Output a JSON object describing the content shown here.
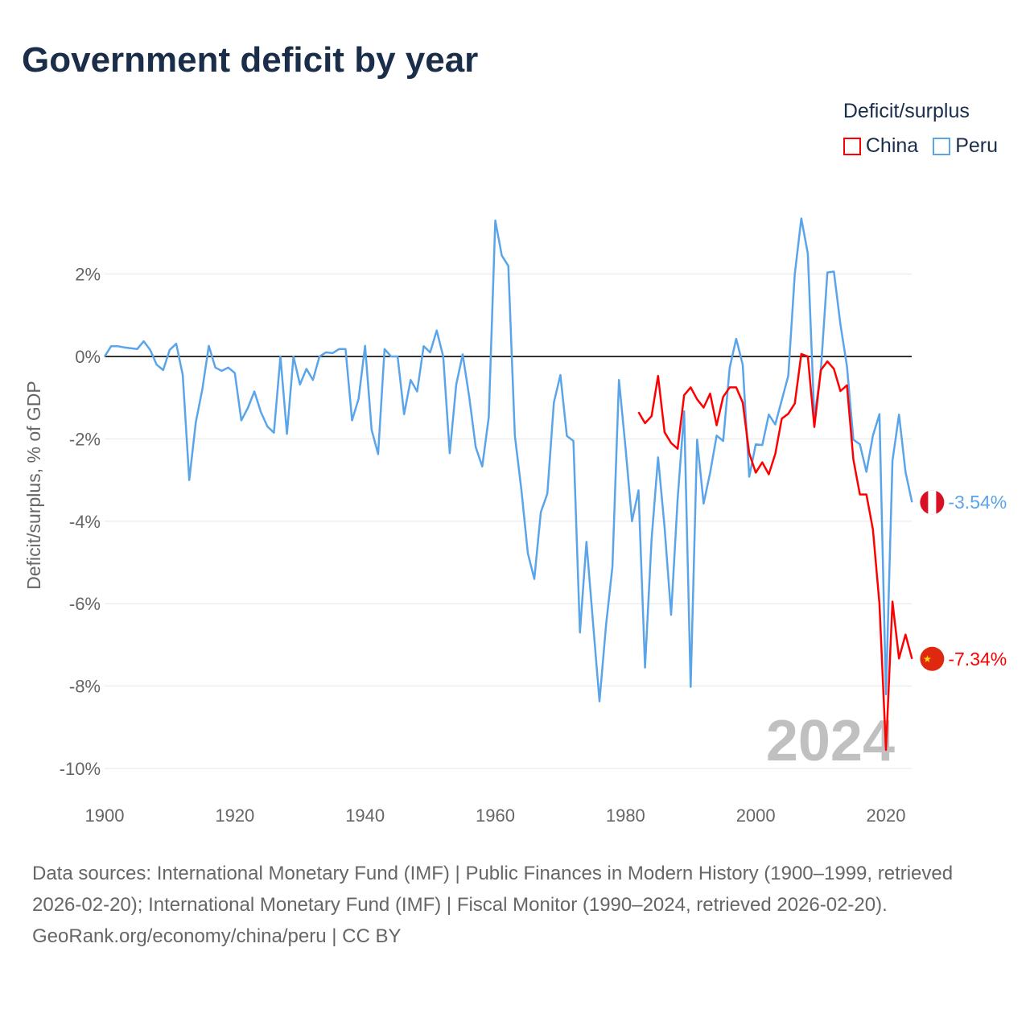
{
  "title": "Government deficit by year",
  "legend": {
    "title": "Deficit/surplus",
    "items": [
      {
        "label": "China",
        "color": "#ff0000"
      },
      {
        "label": "Peru",
        "color": "#5aa5ea"
      }
    ]
  },
  "year_watermark": "2024",
  "footer": {
    "sources": "Data sources: International Monetary Fund (IMF) | Public Finances in Modern History (1900–1999, retrieved 2026-02-20); International Monetary Fund (IMF) | Fiscal Monitor (1990–2024, retrieved 2026-02-20).",
    "credit": "GeoRank.org/economy/china/peru | CC BY"
  },
  "chart_data": {
    "type": "line",
    "title": "Government deficit by year",
    "xlabel": "",
    "ylabel": "Deficit/surplus, % of GDP",
    "xlim": [
      1900,
      2024
    ],
    "ylim": [
      -10,
      3.4
    ],
    "xticks": [
      1900,
      1920,
      1940,
      1960,
      1980,
      2000,
      2020
    ],
    "yticks": [
      {
        "v": 2,
        "label": "2%"
      },
      {
        "v": 0,
        "label": "0%"
      },
      {
        "v": -2,
        "label": "-2%"
      },
      {
        "v": -4,
        "label": "-4%"
      },
      {
        "v": -6,
        "label": "-6%"
      },
      {
        "v": -8,
        "label": "-8%"
      },
      {
        "v": -10,
        "label": "-10%"
      }
    ],
    "series": [
      {
        "name": "Peru",
        "color": "#5aa5ea",
        "start": 1900,
        "end_label": "-3.54%",
        "flag": "peru",
        "values": [
          0,
          0.25,
          0.25,
          0.22,
          0.2,
          0.18,
          0.37,
          0.16,
          -0.2,
          -0.33,
          0.16,
          0.31,
          -0.45,
          -3.0,
          -1.6,
          -0.8,
          0.26,
          -0.27,
          -0.35,
          -0.27,
          -0.4,
          -1.55,
          -1.25,
          -0.85,
          -1.35,
          -1.7,
          -1.85,
          0,
          -1.88,
          0,
          -0.68,
          -0.3,
          -0.57,
          0,
          0.1,
          0.08,
          0.18,
          0.18,
          -1.55,
          -1.03,
          0.26,
          -1.78,
          -2.37,
          0.18,
          0,
          0,
          -1.4,
          -0.57,
          -0.85,
          0.25,
          0.1,
          0.63,
          0,
          -2.35,
          -0.68,
          0.05,
          -0.98,
          -2.2,
          -2.67,
          -1.47,
          3.3,
          2.45,
          2.2,
          -1.92,
          -3.23,
          -4.78,
          -5.4,
          -3.78,
          -3.33,
          -1.12,
          -0.45,
          -1.93,
          -2.05,
          -6.7,
          -4.5,
          -6.45,
          -8.37,
          -6.53,
          -5.1,
          -0.57,
          -2.2,
          -4.0,
          -3.25,
          -7.55,
          -4.45,
          -2.45,
          -4.15,
          -6.27,
          -3.47,
          -1.33,
          -8.02,
          -2.02,
          -3.57,
          -2.82,
          -1.92,
          -2.05,
          -0.27,
          0.43,
          -0.2,
          -2.92,
          -2.13,
          -2.15,
          -1.41,
          -1.65,
          -1.06,
          -0.47,
          2.0,
          3.35,
          2.5,
          -1.5,
          -0.33,
          2.04,
          2.06,
          0.78,
          -0.23,
          -2.02,
          -2.13,
          -2.8,
          -1.92,
          -1.4,
          -8.2,
          -2.53,
          -1.41,
          -2.8,
          -3.54
        ]
      },
      {
        "name": "China",
        "color": "#ff0000",
        "start": 1982,
        "end_label": "-7.34%",
        "flag": "china",
        "values": [
          -1.35,
          -1.62,
          -1.45,
          -0.47,
          -1.84,
          -2.1,
          -2.24,
          -0.94,
          -0.75,
          -1.04,
          -1.24,
          -0.9,
          -1.67,
          -0.98,
          -0.75,
          -0.75,
          -1.12,
          -2.35,
          -2.82,
          -2.57,
          -2.86,
          -2.37,
          -1.51,
          -1.39,
          -1.14,
          0.06,
          0,
          -1.71,
          -0.33,
          -0.12,
          -0.3,
          -0.84,
          -0.7,
          -2.5,
          -3.35,
          -3.35,
          -4.2,
          -6.0,
          -9.55,
          -5.95,
          -7.33,
          -6.75,
          -7.34
        ]
      }
    ]
  }
}
